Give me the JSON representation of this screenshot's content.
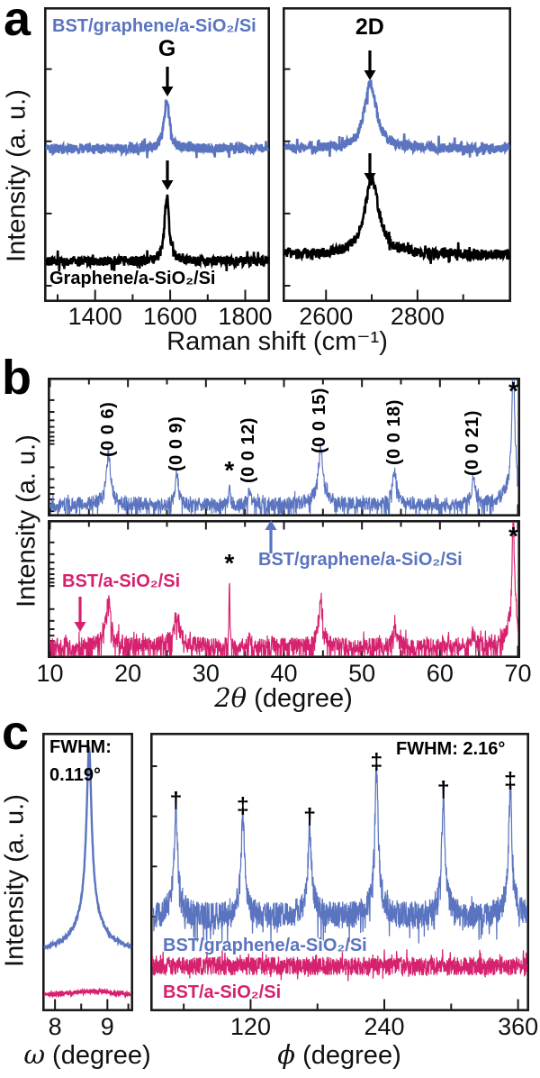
{
  "colors": {
    "blue": "#5a74c0",
    "pink": "#d6216e",
    "black": "#000000",
    "axis": "#1a1a1a",
    "background": "#ffffff"
  },
  "panels": {
    "a": "a",
    "b": "b",
    "c": "c"
  },
  "chart_data": [
    {
      "id": "raman_spectra",
      "panel": "a",
      "type": "line",
      "title": "Raman spectra of graphene before and after BST film growth",
      "xlabel": "Raman shift (cm⁻¹)",
      "ylabel": "Intensity (a. u.)",
      "legend_position": "in-plot labels",
      "subplots": [
        {
          "peak_label": "G",
          "xlim": [
            1270,
            1860
          ],
          "xticks": [
            1400,
            1600,
            1800
          ],
          "xminor": [
            1300,
            1500,
            1700
          ],
          "series": [
            {
              "name": "BST/graphene/a-SiO₂/Si",
              "color": "blue",
              "baseline_frac": 0.48,
              "noise_frac": 0.016,
              "peaks": [
                {
                  "x": 1591,
                  "height_frac": 0.174,
                  "hwhm": 8
                }
              ]
            },
            {
              "name": "Graphene/a-SiO₂/Si",
              "color": "black",
              "baseline_frac": 0.862,
              "noise_frac": 0.017,
              "peaks": [
                {
                  "x": 1591,
                  "height_frac": 0.229,
                  "hwhm": 7
                }
              ]
            }
          ],
          "arrows": [
            {
              "x": 1591,
              "points_to": "G peak of blue trace"
            },
            {
              "x": 1591,
              "points_to": "G peak of black trace"
            }
          ]
        },
        {
          "peak_label": "2D",
          "xlim": [
            2510,
            3000
          ],
          "xticks": [
            2600,
            2800
          ],
          "xminor": [
            2700,
            2900
          ],
          "series": [
            {
              "name": "BST/graphene/a-SiO₂/Si",
              "color": "blue",
              "baseline_frac": 0.48,
              "noise_frac": 0.016,
              "peaks": [
                {
                  "x": 2697,
                  "height_frac": 0.22,
                  "hwhm": 16
                }
              ]
            },
            {
              "name": "Graphene/a-SiO₂/Si",
              "color": "black",
              "baseline_frac": 0.84,
              "noise_frac": 0.017,
              "peaks": [
                {
                  "x": 2700,
                  "height_frac": 0.254,
                  "hwhm": 19
                }
              ]
            }
          ],
          "arrows": [
            {
              "x": 2697,
              "points_to": "2D peak of blue trace"
            },
            {
              "x": 2700,
              "points_to": "2D peak of black trace"
            }
          ]
        }
      ]
    },
    {
      "id": "xrd_2theta",
      "panel": "b",
      "type": "line",
      "title": "XRD θ-2θ patterns of BST films",
      "xlabel": "2θ (degree)",
      "xlabel_math": "2θ",
      "xlabel_rest": " (degree)",
      "ylabel": "Intensity (a. u.)",
      "yscale": "log",
      "xlim": [
        10,
        70
      ],
      "xticks": [
        10,
        20,
        30,
        40,
        50,
        60,
        70
      ],
      "xminor": [
        15,
        25,
        35,
        45,
        55,
        65
      ],
      "reflections": [
        {
          "label": "(0 0 6)",
          "two_theta": 17.5
        },
        {
          "label": "(0 0 9)",
          "two_theta": 26.3
        },
        {
          "label": "*",
          "two_theta": 33.0
        },
        {
          "label": "(0 0 12)",
          "two_theta": 35.6
        },
        {
          "label": "(0 0 15)",
          "two_theta": 44.7
        },
        {
          "label": "(0 0 18)",
          "two_theta": 54.2
        },
        {
          "label": "(0 0 21)",
          "two_theta": 64.3
        },
        {
          "label": "*",
          "two_theta": 69.4
        }
      ],
      "series": [
        {
          "name": "BST/graphene/a-SiO₂/Si",
          "color": "blue",
          "baseline_frac": 0.915,
          "noise_frac": 0.05,
          "peaks": [
            {
              "x": 17.5,
              "height_frac": 0.31,
              "hwhm": 0.28
            },
            {
              "x": 26.3,
              "height_frac": 0.21,
              "hwhm": 0.25
            },
            {
              "x": 33.0,
              "height_frac": 0.14,
              "hwhm": 0.09
            },
            {
              "x": 35.6,
              "height_frac": 0.12,
              "hwhm": 0.18
            },
            {
              "x": 44.7,
              "height_frac": 0.34,
              "hwhm": 0.33
            },
            {
              "x": 54.2,
              "height_frac": 0.25,
              "hwhm": 0.3
            },
            {
              "x": 64.3,
              "height_frac": 0.175,
              "hwhm": 0.28
            },
            {
              "x": 69.4,
              "height_frac": 0.97,
              "hwhm": 0.18
            },
            {
              "x": 69.4,
              "height_frac": 0.18,
              "hwhm": 1.0
            },
            {
              "x": 17.5,
              "height_frac": 0.06,
              "hwhm": 1.1
            },
            {
              "x": 44.7,
              "height_frac": 0.06,
              "hwhm": 1.2
            }
          ]
        },
        {
          "name": "BST/a-SiO₂/Si",
          "color": "pink",
          "baseline_frac": 0.91,
          "noise_frac": 0.055,
          "peaks": [
            {
              "x": 17.5,
              "height_frac": 0.29,
              "hwhm": 0.3
            },
            {
              "x": 26.3,
              "height_frac": 0.16,
              "hwhm": 0.35
            },
            {
              "x": 33.0,
              "height_frac": 0.49,
              "hwhm": 0.07
            },
            {
              "x": 35.6,
              "height_frac": 0.08,
              "hwhm": 0.15
            },
            {
              "x": 44.7,
              "height_frac": 0.3,
              "hwhm": 0.35
            },
            {
              "x": 54.2,
              "height_frac": 0.14,
              "hwhm": 0.3
            },
            {
              "x": 64.3,
              "height_frac": 0.1,
              "hwhm": 0.25
            },
            {
              "x": 69.4,
              "height_frac": 0.88,
              "hwhm": 0.15
            },
            {
              "x": 69.4,
              "height_frac": 0.18,
              "hwhm": 0.9
            },
            {
              "x": 17.5,
              "height_frac": 0.06,
              "hwhm": 1.0
            },
            {
              "x": 26.3,
              "height_frac": 0.05,
              "hwhm": 0.9
            }
          ]
        }
      ]
    },
    {
      "id": "rocking_curve_omega",
      "panel": "c",
      "type": "line",
      "title": "X-ray rocking curve (ω scan)",
      "xlabel": "ω (degree)",
      "xlabel_math": "ω",
      "xlabel_rest": " (degree)",
      "ylabel": "Intensity (a. u.)",
      "xlim": [
        7.8,
        9.45
      ],
      "xticks": [
        8,
        9
      ],
      "xminor": [
        8.5,
        9.4
      ],
      "fwhm": {
        "line1": "FWHM:",
        "line2": "0.119°",
        "value_deg": 0.119
      },
      "series": [
        {
          "name": "BST/graphene/a-SiO₂/Si",
          "color": "blue",
          "baseline_frac": 0.795,
          "noise_frac": 0.006,
          "peaks": [
            {
              "x": 8.65,
              "height_frac": 0.55,
              "hwhm": 0.055
            },
            {
              "x": 8.65,
              "height_frac": 0.14,
              "hwhm": 0.2
            },
            {
              "x": 8.65,
              "height_frac": 0.05,
              "hwhm": 0.55
            }
          ]
        },
        {
          "name": "BST/a-SiO₂/Si",
          "color": "pink",
          "baseline_frac": 0.943,
          "noise_frac": 0.005,
          "peaks": [
            {
              "x": 8.7,
              "height_frac": 0.015,
              "hwhm": 0.5
            }
          ]
        }
      ]
    },
    {
      "id": "phi_scan",
      "panel": "c",
      "type": "line",
      "title": "XRD ϕ scan",
      "xlabel": "ϕ (degree)",
      "xlabel_math": "ϕ",
      "xlabel_rest": " (degree)",
      "ylabel": "Intensity (a. u.)",
      "xlim": [
        32,
        368
      ],
      "xticks": [
        120,
        240,
        360
      ],
      "xminor": [
        60,
        180,
        300
      ],
      "fwhm": {
        "label": "FWHM: 2.16°",
        "value_deg": 2.16
      },
      "peak_markers": [
        {
          "phi": 53,
          "symbol": "†"
        },
        {
          "phi": 113,
          "symbol": "‡"
        },
        {
          "phi": 173,
          "symbol": "†"
        },
        {
          "phi": 233,
          "symbol": "‡"
        },
        {
          "phi": 293,
          "symbol": "†"
        },
        {
          "phi": 353,
          "symbol": "‡"
        }
      ],
      "series": [
        {
          "name": "BST/graphene/a-SiO₂/Si",
          "color": "blue",
          "baseline_frac": 0.663,
          "noise_frac": 0.048,
          "peaks": [
            {
              "x": 53,
              "height_frac": 0.33,
              "hwhm": 1.6
            },
            {
              "x": 113,
              "height_frac": 0.31,
              "hwhm": 1.6
            },
            {
              "x": 173,
              "height_frac": 0.27,
              "hwhm": 1.6
            },
            {
              "x": 233,
              "height_frac": 0.47,
              "hwhm": 1.6
            },
            {
              "x": 293,
              "height_frac": 0.37,
              "hwhm": 1.6
            },
            {
              "x": 353,
              "height_frac": 0.4,
              "hwhm": 1.6
            },
            {
              "x": 53,
              "height_frac": 0.07,
              "hwhm": 6
            },
            {
              "x": 113,
              "height_frac": 0.06,
              "hwhm": 6
            },
            {
              "x": 173,
              "height_frac": 0.06,
              "hwhm": 6
            },
            {
              "x": 233,
              "height_frac": 0.08,
              "hwhm": 6
            },
            {
              "x": 293,
              "height_frac": 0.07,
              "hwhm": 6
            },
            {
              "x": 353,
              "height_frac": 0.07,
              "hwhm": 6
            }
          ]
        },
        {
          "name": "BST/a-SiO₂/Si",
          "color": "pink",
          "baseline_frac": 0.838,
          "noise_frac": 0.033,
          "peaks": []
        }
      ]
    }
  ]
}
